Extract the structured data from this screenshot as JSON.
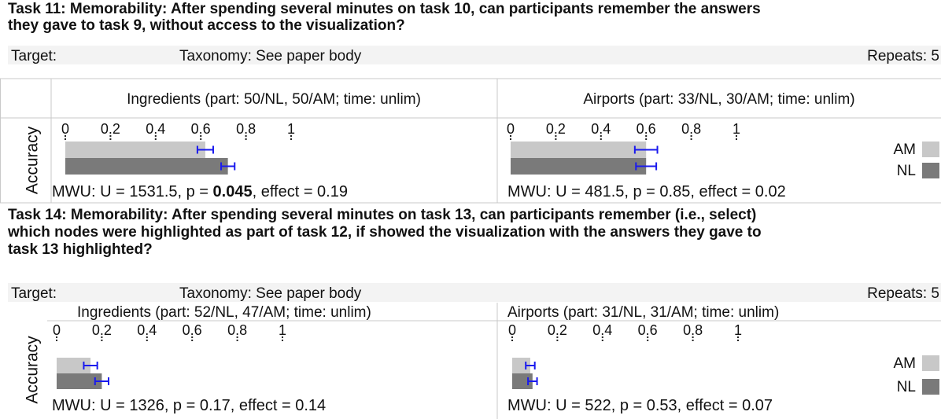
{
  "tasks": [
    {
      "title_lines": [
        "Task 11: Memorability: After spending several minutes on task 10, can participants remember the answers",
        "they gave to task 9, without access to the visualization?"
      ],
      "target": "Target:",
      "taxonomy": "Taxonomy: See paper body",
      "repeats": "Repeats: 5",
      "row_label": "Accuracy",
      "legend": [
        {
          "name": "AM",
          "color": "#c8c8c8"
        },
        {
          "name": "NL",
          "color": "#7a7a7a"
        }
      ],
      "panels": [
        {
          "header": "Ingredients (part: 50/NL, 50/AM; time: unlim)",
          "chart_data": {
            "type": "bar",
            "orientation": "horizontal",
            "xlim": [
              0,
              1
            ],
            "xticks": [
              0,
              0.2,
              0.4,
              0.6,
              0.8,
              1
            ],
            "values": [
              0.62,
              0.72
            ],
            "errors": [
              0.035,
              0.03
            ],
            "error_color": "#1a1aee"
          },
          "stats": [
            {
              "text": "MWU: U = 1531.5, p = "
            },
            {
              "text": "0.045",
              "bold": true
            },
            {
              "text": ", effect = 0.19"
            }
          ]
        },
        {
          "header": "Airports (part: 33/NL, 30/AM; time: unlim)",
          "chart_data": {
            "type": "bar",
            "orientation": "horizontal",
            "xlim": [
              0,
              1
            ],
            "xticks": [
              0,
              0.2,
              0.4,
              0.6,
              0.8,
              1
            ],
            "values": [
              0.6,
              0.6
            ],
            "errors": [
              0.05,
              0.045
            ],
            "error_color": "#1a1aee"
          },
          "stats": [
            {
              "text": "MWU: U = 481.5, p = 0.85, effect = 0.02"
            }
          ]
        }
      ]
    },
    {
      "title_lines": [
        "Task 14: Memorability: After spending several minutes on task 13, can participants remember (i.e., select)",
        "which nodes were highlighted as part of task 12, if showed the visualization with the answers they gave to",
        "task 13 highlighted?"
      ],
      "target": "Target:",
      "taxonomy": "Taxonomy: See paper body",
      "repeats": "Repeats: 5",
      "row_label": "Accuracy",
      "legend": [
        {
          "name": "AM",
          "color": "#c8c8c8"
        },
        {
          "name": "NL",
          "color": "#7a7a7a"
        }
      ],
      "panels": [
        {
          "header": "Ingredients (part: 52/NL, 47/AM; time: unlim)",
          "chart_data": {
            "type": "bar",
            "orientation": "horizontal",
            "xlim": [
              0,
              1
            ],
            "xticks": [
              0,
              0.2,
              0.4,
              0.6,
              0.8,
              1
            ],
            "values": [
              0.15,
              0.2
            ],
            "errors": [
              0.03,
              0.03
            ],
            "error_color": "#1a1aee"
          },
          "stats": [
            {
              "text": "MWU: U = 1326, p = 0.17, effect = 0.14"
            }
          ]
        },
        {
          "header": "Airports (part: 31/NL, 31/AM; time: unlim)",
          "chart_data": {
            "type": "bar",
            "orientation": "horizontal",
            "xlim": [
              0,
              1
            ],
            "xticks": [
              0,
              0.2,
              0.4,
              0.6,
              0.8,
              1
            ],
            "values": [
              0.08,
              0.09
            ],
            "errors": [
              0.02,
              0.02
            ],
            "error_color": "#1a1aee"
          },
          "stats": [
            {
              "text": "MWU: U = 522, p = 0.53, effect = 0.07"
            }
          ]
        }
      ]
    }
  ]
}
